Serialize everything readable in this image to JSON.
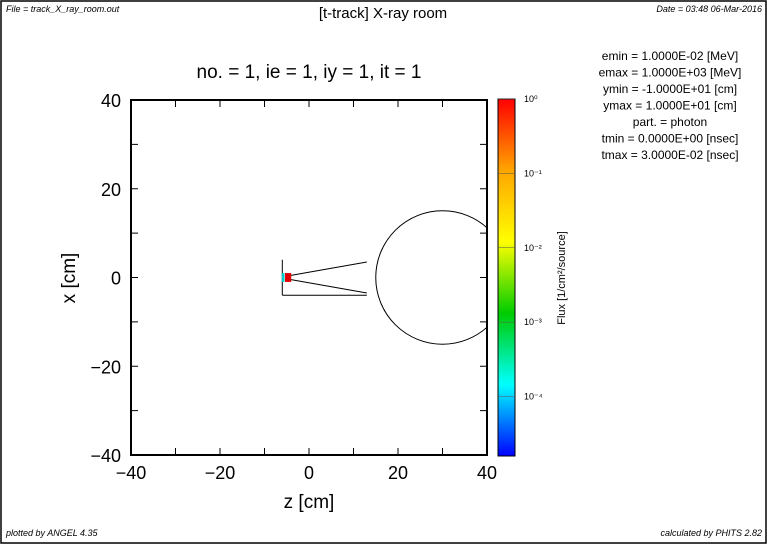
{
  "header": {
    "file": "File = track_X_ray_room.out",
    "title": "[t-track] X-ray room",
    "date": "Date = 03:48 06-Mar-2016"
  },
  "footer": {
    "plotted_by": "plotted by ANGEL 4.35",
    "calculated_by": "calculated by PHITS 2.82"
  },
  "params": [
    "emin  =   1.0000E-02 [MeV]",
    "emax  =   1.0000E+03 [MeV]",
    "ymin  =  -1.0000E+01 [cm]",
    "ymax  =   1.0000E+01 [cm]",
    "part. = photon",
    "tmin  =   0.0000E+00 [nsec]",
    "tmax  =   3.0000E-02 [nsec]"
  ],
  "chart_data": {
    "type": "heatmap",
    "subtitle": "no. =  1,  ie =  1,  iy =  1,  it =  1",
    "xlabel": "z [cm]",
    "ylabel": "x [cm]",
    "xlim": [
      -40,
      40
    ],
    "ylim": [
      -40,
      40
    ],
    "xticks": [
      "−40",
      "−20",
      "0",
      "20",
      "40"
    ],
    "yticks": [
      "−40",
      "−20",
      "0",
      "20",
      "40"
    ],
    "colorbar": {
      "label": "Flux [1/cm²/source]",
      "scale": "log",
      "ticks": [
        "10⁰",
        "10⁻¹",
        "10⁻²",
        "10⁻³",
        "10⁻⁴"
      ],
      "colors": [
        "#ff0000",
        "#ffa500",
        "#ffff00",
        "#00cc00",
        "#00ffff",
        "#0000ff"
      ]
    },
    "geometry": {
      "sphere": {
        "center_z": 30,
        "center_x": 0,
        "radius": 15
      },
      "cone_apex_z": -5,
      "cone_end_z": 13,
      "cone_half_width_end": 3.5
    },
    "hot_region": {
      "z": [
        -6,
        -4
      ],
      "x": [
        -1,
        1
      ],
      "level": "10⁰"
    }
  }
}
